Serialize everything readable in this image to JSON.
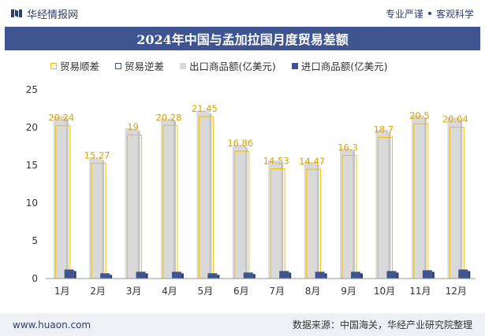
{
  "header": {
    "brand": "华经情报网",
    "tag_left": "专业严谨",
    "tag_right": "客观科学"
  },
  "title": "2024年中国与孟加拉国月度贸易差额",
  "legend": [
    "贸易顺差",
    "贸易逆差",
    "出口商品额(亿美元)",
    "进口商品额(亿美元)"
  ],
  "footer": {
    "site": "www.huaon.com",
    "source": "数据来源：中国海关，华经产业研究院整理"
  },
  "colors": {
    "title_bg": "#3f5592",
    "export_bar": "#d9d9d9",
    "import_bar": "#3f5592",
    "surplus": "#f0c000",
    "deficit": "#3f5592"
  },
  "chart_data": {
    "type": "bar",
    "categories": [
      "1月",
      "2月",
      "3月",
      "4月",
      "5月",
      "6月",
      "7月",
      "8月",
      "9月",
      "10月",
      "11月",
      "12月"
    ],
    "series": [
      {
        "name": "出口商品额(亿美元)",
        "values": [
          21.5,
          16.0,
          19.9,
          21.2,
          22.2,
          17.7,
          15.6,
          15.4,
          17.2,
          19.7,
          21.6,
          21.3
        ]
      },
      {
        "name": "进口商品额(亿美元)",
        "values": [
          1.2,
          0.7,
          0.9,
          0.9,
          0.7,
          0.8,
          1.0,
          0.9,
          0.9,
          1.0,
          1.1,
          1.2
        ]
      },
      {
        "name": "贸易顺差",
        "values": [
          20.24,
          15.27,
          19,
          20.28,
          21.45,
          16.86,
          14.53,
          14.47,
          16.3,
          18.7,
          20.5,
          20.04
        ]
      }
    ],
    "data_labels": [
      "20.24",
      "15.27",
      "19",
      "20.28",
      "21.45",
      "16.86",
      "14.53",
      "14.47",
      "16.3",
      "18.7",
      "20.5",
      "20.04"
    ],
    "ylim": [
      0,
      25
    ],
    "yticks": [
      "0",
      "5",
      "10",
      "15",
      "20",
      "25"
    ],
    "grid": false
  }
}
